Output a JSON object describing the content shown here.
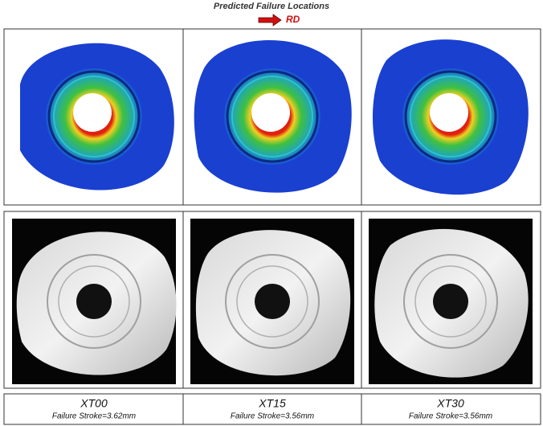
{
  "header": {
    "title": "Predicted Failure Locations",
    "arrow_label": "RD"
  },
  "panels": [
    {
      "label": "XT00",
      "caption": "Failure Stroke=3.62mm"
    },
    {
      "label": "XT15",
      "caption": "Failure Stroke=3.56mm"
    },
    {
      "label": "XT30",
      "caption": "Failure Stroke=3.56mm"
    }
  ]
}
